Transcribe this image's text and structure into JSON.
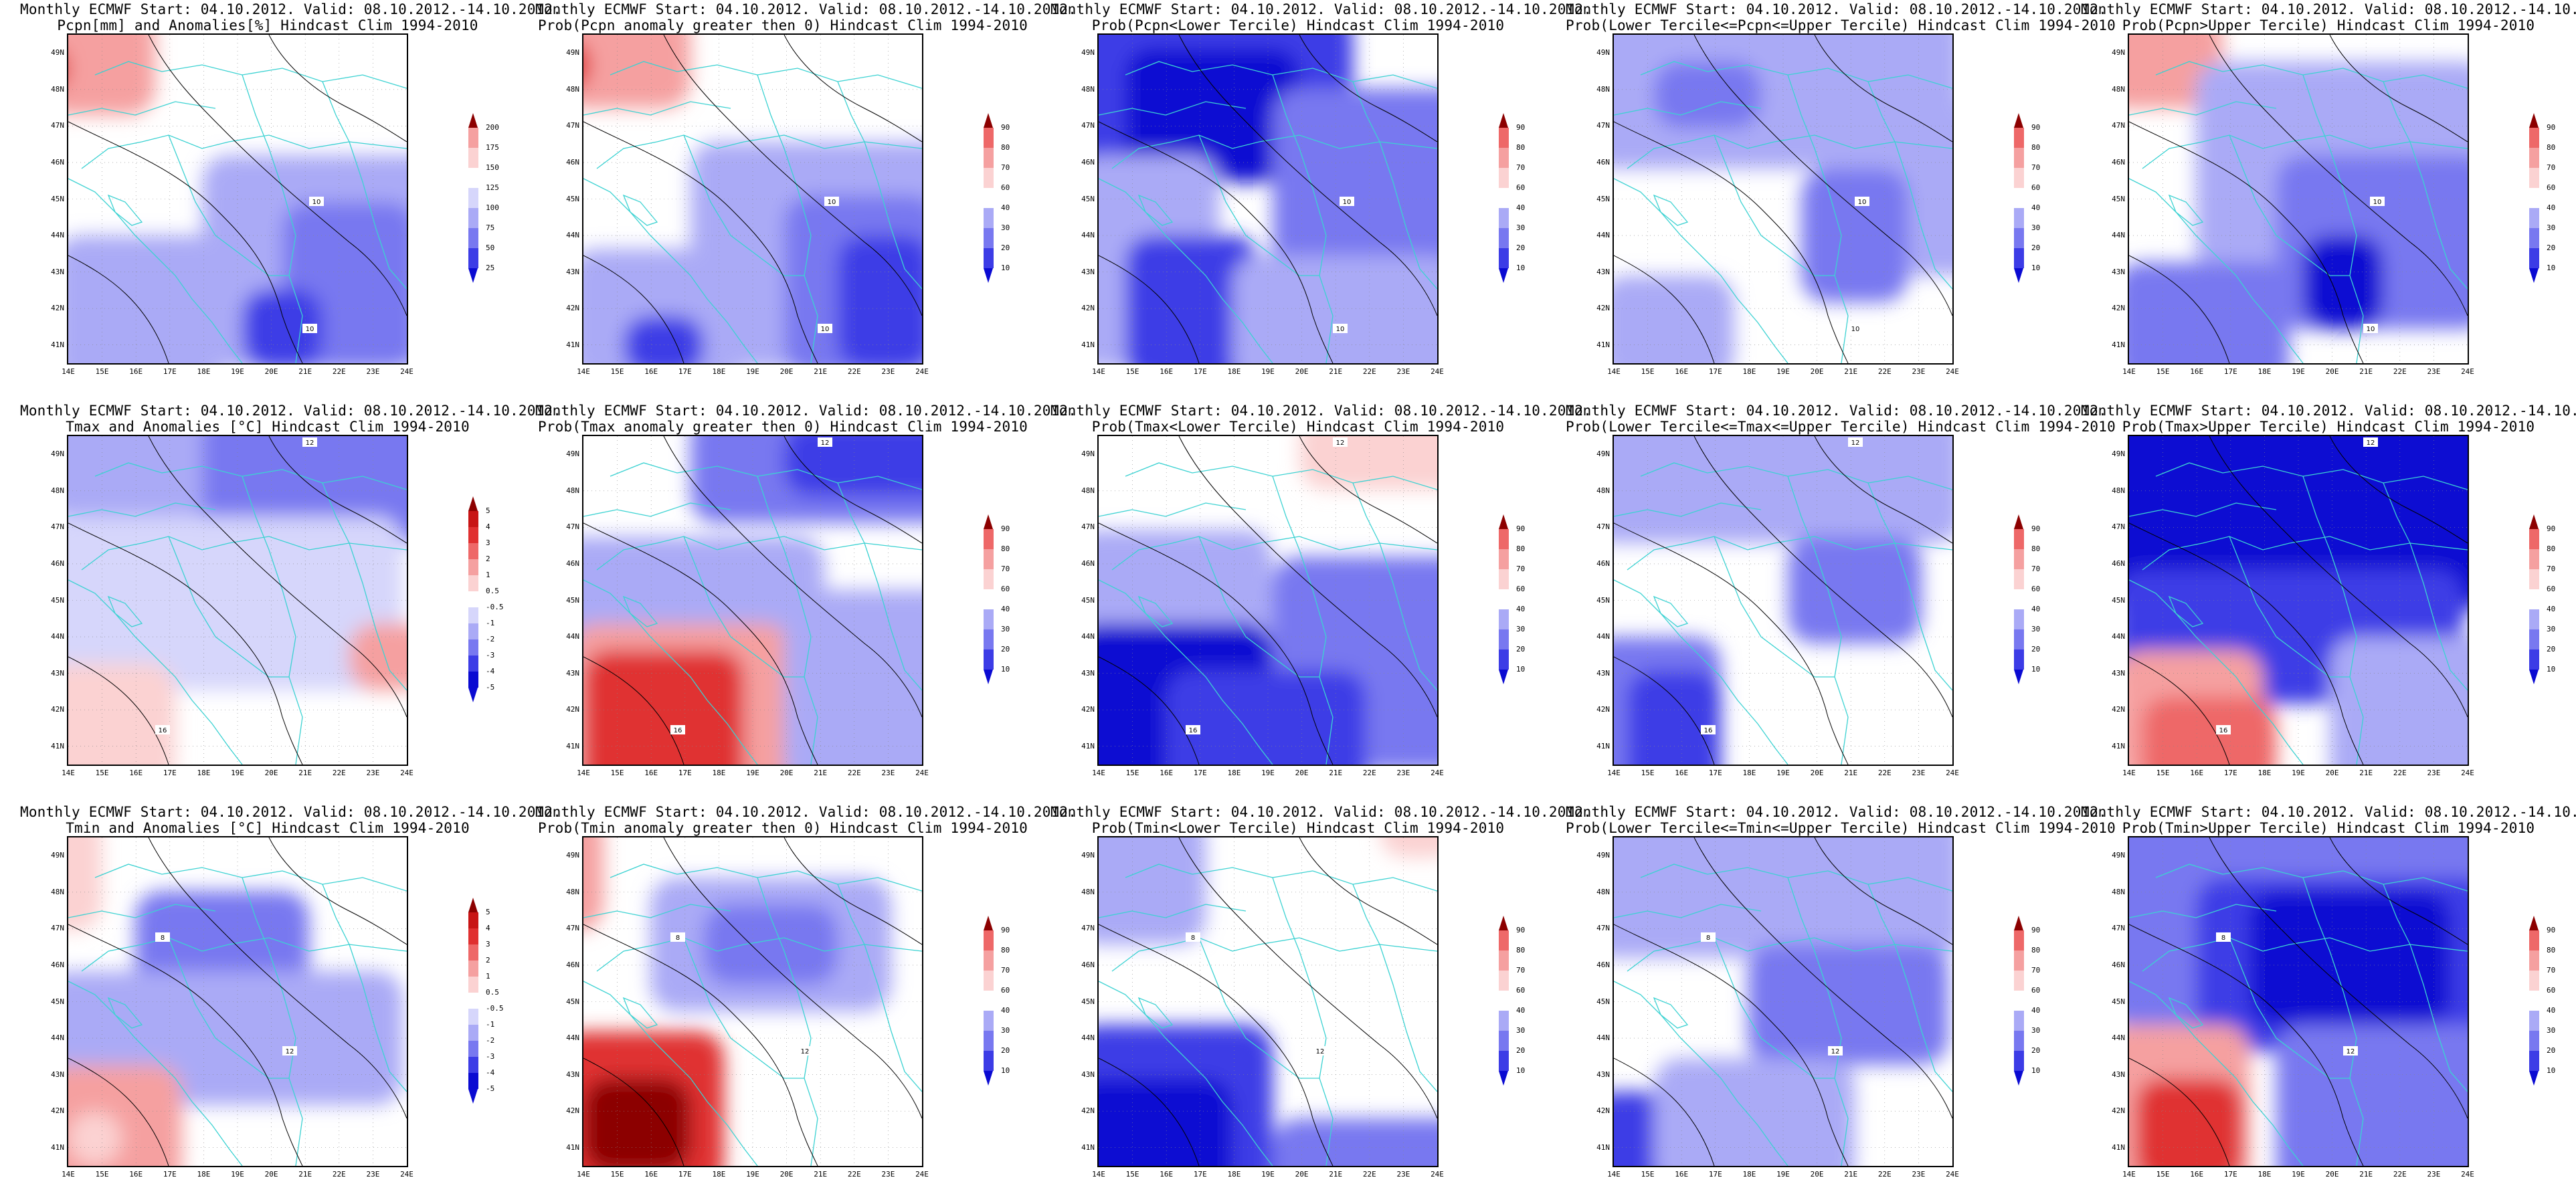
{
  "header_line": "Monthly ECMWF Start: 04.10.2012. Valid: 08.10.2012.-14.10.2012.",
  "lat_ticks": [
    "41N",
    "42N",
    "43N",
    "44N",
    "45N",
    "46N",
    "47N",
    "48N",
    "49N"
  ],
  "lon_ticks": [
    "14E",
    "15E",
    "16E",
    "17E",
    "18E",
    "19E",
    "20E",
    "21E",
    "22E",
    "23E",
    "24E"
  ],
  "colors": {
    "blue": [
      "#0a0ad2",
      "#3c3ce6",
      "#7878f0",
      "#aaaaf6",
      "#d6d6fb"
    ],
    "red": [
      "#fbd2d2",
      "#f5a0a0",
      "#ee6868",
      "#e03030",
      "#c81414",
      "#8c0000"
    ],
    "coast": "#3cd2d2",
    "contour": "#000000"
  },
  "colorbars": {
    "pcpn_anom": [
      "25",
      "50",
      "75",
      "100",
      "125",
      "150",
      "175",
      "200"
    ],
    "prob": [
      "10",
      "20",
      "30",
      "40",
      "60",
      "70",
      "80",
      "90"
    ],
    "temp_anom": [
      "-5",
      "-4",
      "-3",
      "-2",
      "-1",
      "-0.5",
      "0.5",
      "1",
      "2",
      "3",
      "4",
      "5"
    ]
  },
  "panels": [
    {
      "name": "pcpn-anomaly",
      "subtitle": "Pcpn[mm] and Anomalies[%] Hindcast Clim 1994-2010",
      "cbar": "pcpn_anom",
      "contour_labels": [
        "10",
        "10"
      ]
    },
    {
      "name": "pcpn-prob-above-zero",
      "subtitle": "Prob(Pcpn anomaly greater then 0) Hindcast Clim 1994-2010",
      "cbar": "prob",
      "contour_labels": [
        "10",
        "10"
      ]
    },
    {
      "name": "pcpn-prob-lower-tercile",
      "subtitle": "Prob(Pcpn<Lower Tercile) Hindcast Clim 1994-2010",
      "cbar": "prob",
      "contour_labels": [
        "10",
        "10"
      ]
    },
    {
      "name": "pcpn-prob-middle-tercile",
      "subtitle": "Prob(Lower Tercile<=Pcpn<=Upper Tercile) Hindcast Clim 1994-2010",
      "cbar": "prob",
      "contour_labels": [
        "10",
        "10"
      ]
    },
    {
      "name": "pcpn-prob-upper-tercile",
      "subtitle": "Prob(Pcpn>Upper Tercile) Hindcast Clim 1994-2010",
      "cbar": "prob",
      "contour_labels": [
        "10",
        "10"
      ]
    },
    {
      "name": "tmax-anomaly",
      "subtitle": "Tmax and Anomalies [°C] Hindcast Clim 1994-2010",
      "cbar": "temp_anom",
      "contour_labels": [
        "12",
        "16"
      ]
    },
    {
      "name": "tmax-prob-above-zero",
      "subtitle": "Prob(Tmax anomaly greater then 0) Hindcast Clim 1994-2010",
      "cbar": "prob",
      "contour_labels": [
        "12",
        "16"
      ]
    },
    {
      "name": "tmax-prob-lower-tercile",
      "subtitle": "Prob(Tmax<Lower Tercile) Hindcast Clim 1994-2010",
      "cbar": "prob",
      "contour_labels": [
        "12",
        "16"
      ]
    },
    {
      "name": "tmax-prob-middle-tercile",
      "subtitle": "Prob(Lower Tercile<=Tmax<=Upper Tercile) Hindcast Clim 1994-2010",
      "cbar": "prob",
      "contour_labels": [
        "12",
        "16"
      ]
    },
    {
      "name": "tmax-prob-upper-tercile",
      "subtitle": "Prob(Tmax>Upper Tercile) Hindcast Clim 1994-2010",
      "cbar": "prob",
      "contour_labels": [
        "12",
        "16"
      ]
    },
    {
      "name": "tmin-anomaly",
      "subtitle": "Tmin and Anomalies [°C] Hindcast Clim 1994-2010",
      "cbar": "temp_anom",
      "contour_labels": [
        "8",
        "12"
      ]
    },
    {
      "name": "tmin-prob-above-zero",
      "subtitle": "Prob(Tmin anomaly greater then 0) Hindcast Clim 1994-2010",
      "cbar": "prob",
      "contour_labels": [
        "8",
        "12"
      ]
    },
    {
      "name": "tmin-prob-lower-tercile",
      "subtitle": "Prob(Tmin<Lower Tercile) Hindcast Clim 1994-2010",
      "cbar": "prob",
      "contour_labels": [
        "8",
        "12"
      ]
    },
    {
      "name": "tmin-prob-middle-tercile",
      "subtitle": "Prob(Lower Tercile<=Tmin<=Upper Tercile) Hindcast Clim 1994-2010",
      "cbar": "prob",
      "contour_labels": [
        "8",
        "12"
      ]
    },
    {
      "name": "tmin-prob-upper-tercile",
      "subtitle": "Prob(Tmin>Upper Tercile) Hindcast Clim 1994-2010",
      "cbar": "prob",
      "contour_labels": [
        "8",
        "12"
      ]
    }
  ]
}
